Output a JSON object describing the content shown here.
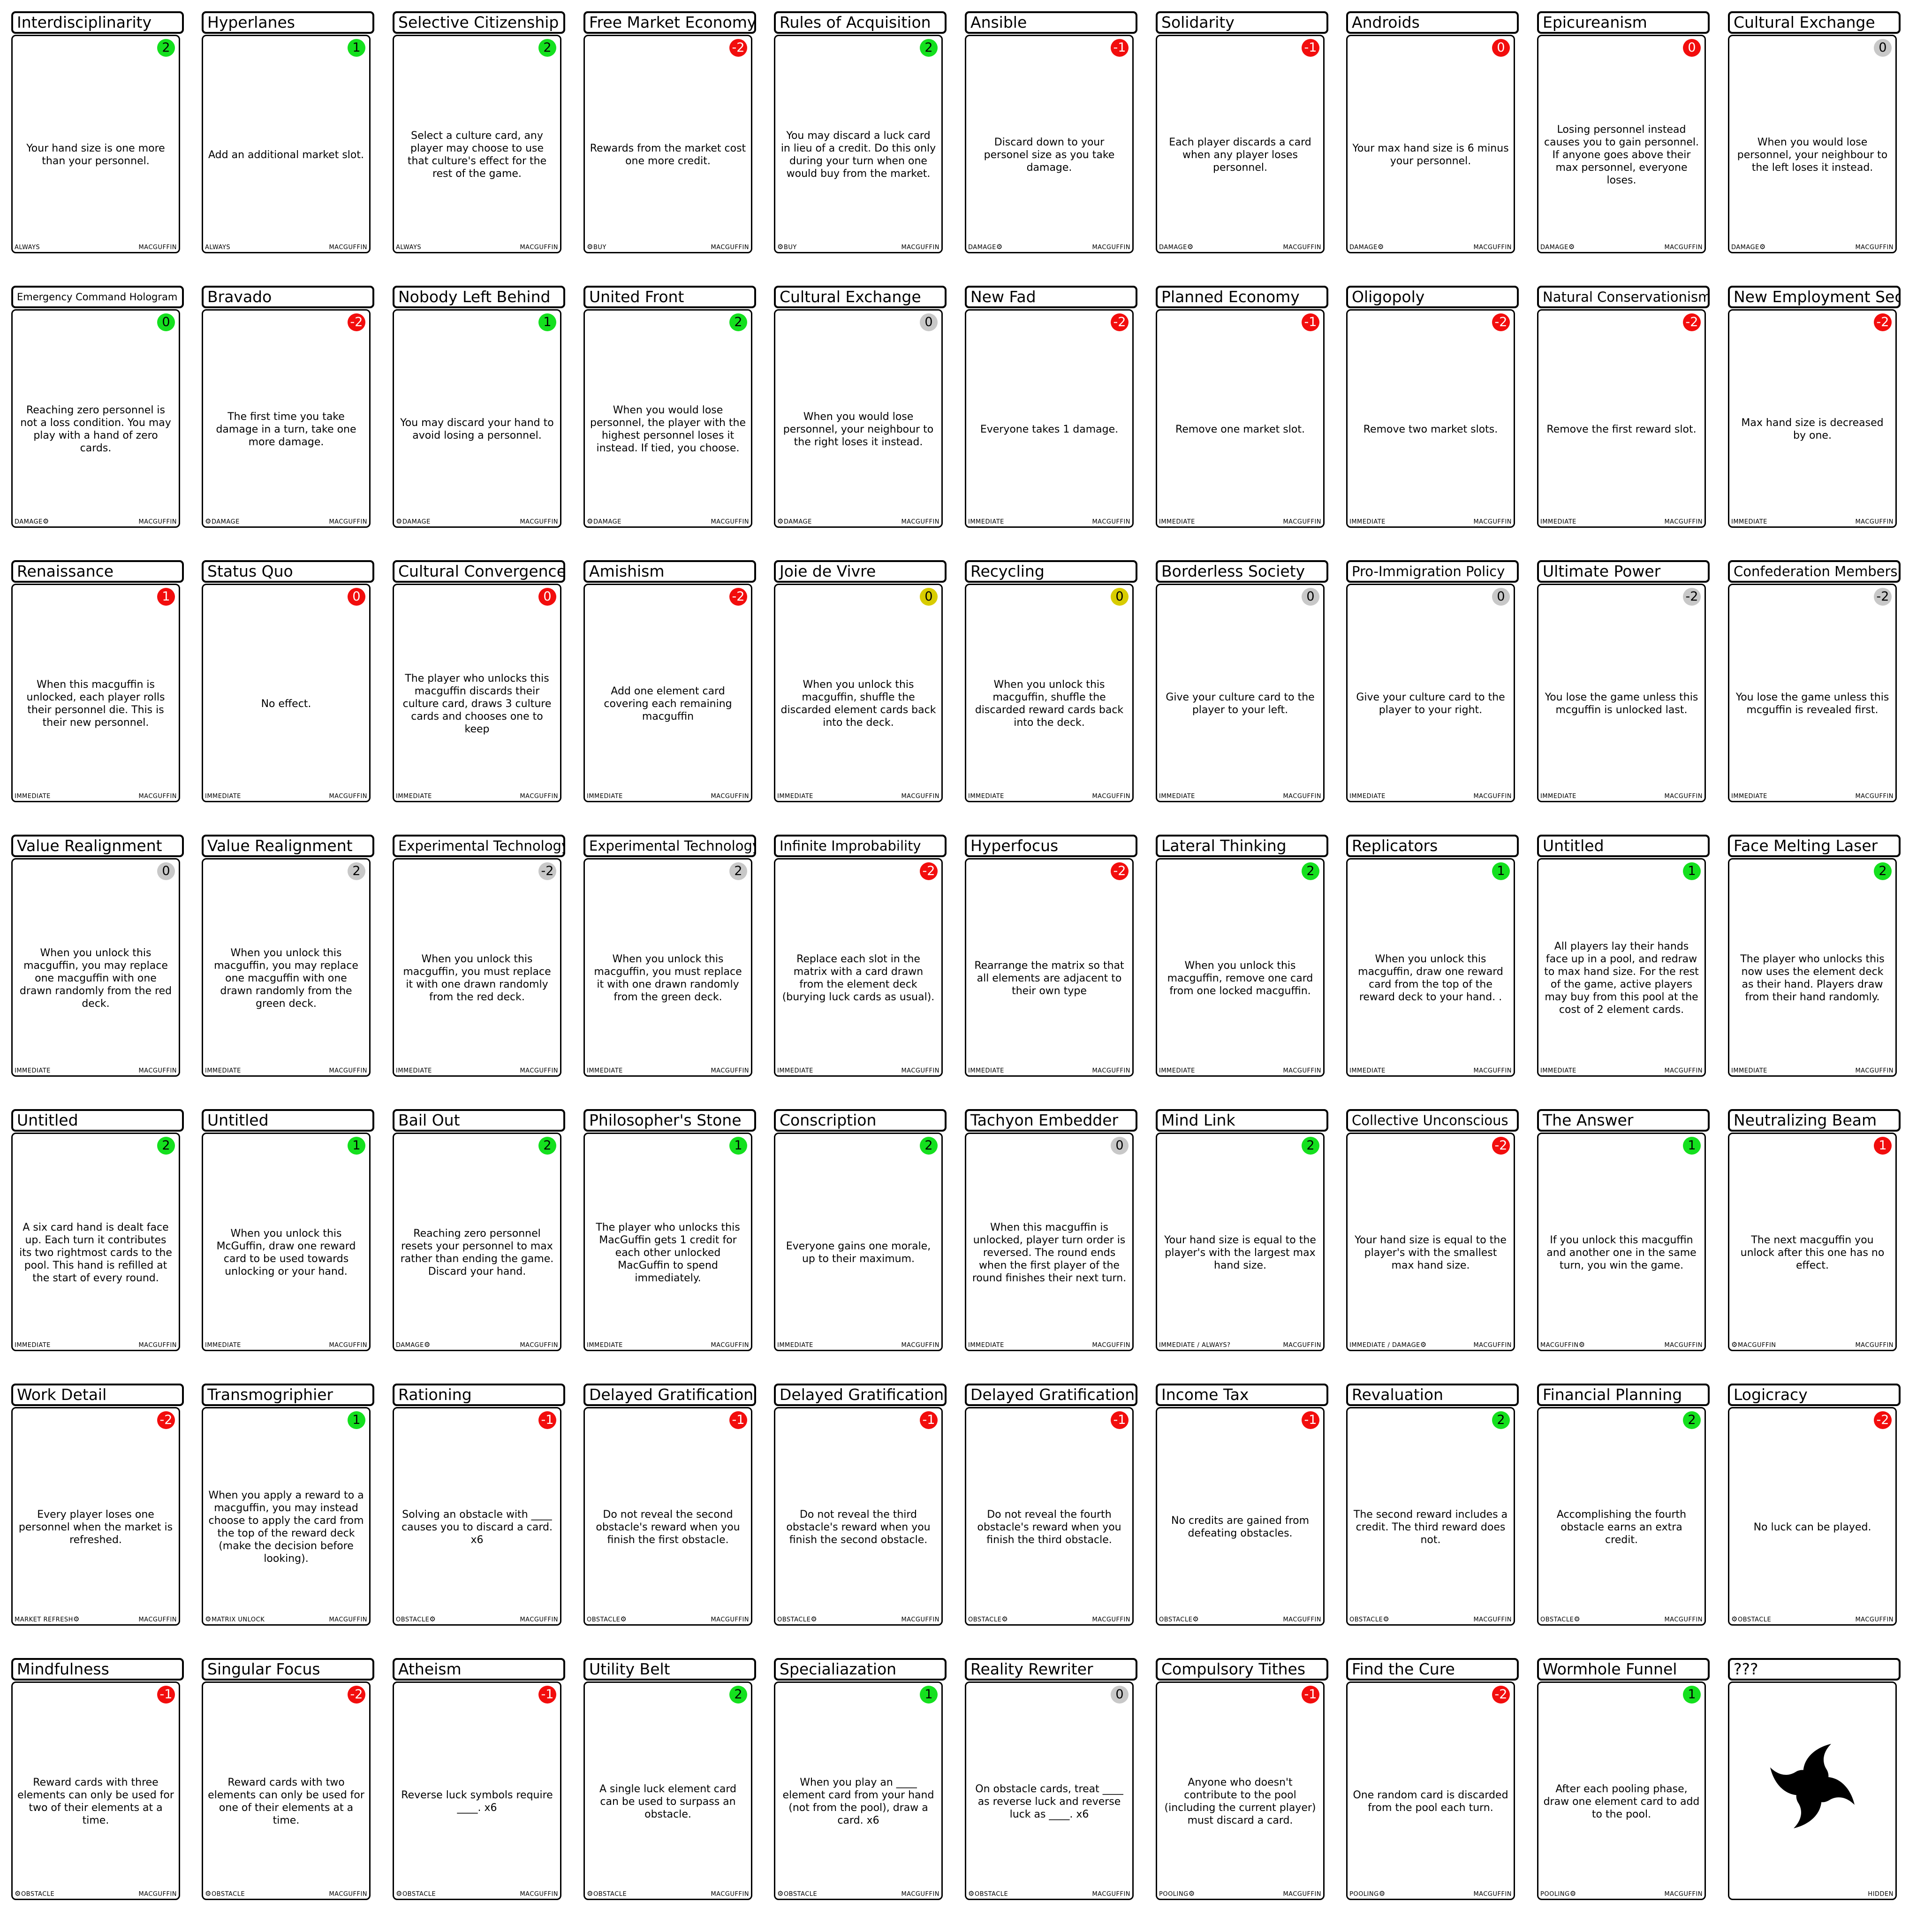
{
  "colors": {
    "green": "#14e01e",
    "red": "#f20d0d",
    "grey": "#c8c8c8",
    "yellow": "#d8cc00"
  },
  "rows": [
    [
      {
        "title": "Interdisciplinarity",
        "value": "2",
        "badge": "green",
        "text": "Your hand size is one more than your personnel.",
        "tag": "ALWAYS",
        "gear": "none",
        "type": "MACGUFFIN"
      },
      {
        "title": "Hyperlanes",
        "value": "1",
        "badge": "green",
        "text": "Add an additional market slot.",
        "tag": "ALWAYS",
        "gear": "none",
        "type": "MACGUFFIN"
      },
      {
        "title": "Selective Citizenship",
        "value": "2",
        "badge": "green",
        "text": "Select a culture card, any player may choose to use that culture's effect for the rest of the game.",
        "tag": "ALWAYS",
        "gear": "none",
        "type": "MACGUFFIN"
      },
      {
        "title": "Free Market Economy",
        "value": "-2",
        "badge": "red",
        "text": "Rewards from the market cost one more credit.",
        "tag": "BUY",
        "gear": "before",
        "type": "MACGUFFIN"
      },
      {
        "title": "Rules of Acquisition",
        "value": "2",
        "badge": "green",
        "text": "You may discard a luck card in lieu of a credit. Do this only during your turn when one would buy from the market.",
        "tag": "BUY",
        "gear": "before",
        "type": "MACGUFFIN"
      },
      {
        "title": "Ansible",
        "value": "-1",
        "badge": "red",
        "text": "Discard down to your personel size as you take damage.",
        "tag": "DAMAGE",
        "gear": "after",
        "type": "MACGUFFIN"
      },
      {
        "title": "Solidarity",
        "value": "-1",
        "badge": "red",
        "text": "Each player discards a card when any player loses personnel.",
        "tag": "DAMAGE",
        "gear": "after",
        "type": "MACGUFFIN"
      },
      {
        "title": "Androids",
        "value": "0",
        "badge": "red",
        "text": "Your max hand size is 6 minus your personnel.",
        "tag": "DAMAGE",
        "gear": "after",
        "type": "MACGUFFIN"
      },
      {
        "title": "Epicureanism",
        "value": "0",
        "badge": "red",
        "text": "Losing personnel instead causes you to gain personnel. If anyone goes above their max personnel, everyone loses.",
        "tag": "DAMAGE",
        "gear": "after",
        "type": "MACGUFFIN"
      },
      {
        "title": "Cultural Exchange",
        "value": "0",
        "badge": "grey",
        "text": "When you would lose personnel, your neighbour to the left loses it instead.",
        "tag": "DAMAGE",
        "gear": "after",
        "type": "MACGUFFIN"
      }
    ],
    [
      {
        "title": "Emergency Command Hologram",
        "value": "0",
        "badge": "green",
        "text": "Reaching zero personnel is not a loss condition. You may play with a hand of zero cards.",
        "tag": "DAMAGE",
        "gear": "after",
        "type": "MACGUFFIN"
      },
      {
        "title": "Bravado",
        "value": "-2",
        "badge": "red",
        "text": "The first time you take damage in a turn, take one more damage.",
        "tag": "DAMAGE",
        "gear": "before",
        "type": "MACGUFFIN"
      },
      {
        "title": "Nobody Left Behind",
        "value": "1",
        "badge": "green",
        "text": "You may discard your hand to avoid losing a personnel.",
        "tag": "DAMAGE",
        "gear": "before",
        "type": "MACGUFFIN"
      },
      {
        "title": "United Front",
        "value": "2",
        "badge": "green",
        "text": "When you would lose personnel, the player with the highest personnel loses it instead. If tied, you choose.",
        "tag": "DAMAGE",
        "gear": "before",
        "type": "MACGUFFIN"
      },
      {
        "title": "Cultural Exchange",
        "value": "0",
        "badge": "grey",
        "text": "When you would lose personnel, your neighbour to the right loses it instead.",
        "tag": "DAMAGE",
        "gear": "before",
        "type": "MACGUFFIN"
      },
      {
        "title": "New Fad",
        "value": "-2",
        "badge": "red",
        "text": "Everyone takes 1 damage.",
        "tag": "IMMEDIATE",
        "gear": "none",
        "type": "MACGUFFIN"
      },
      {
        "title": "Planned Economy",
        "value": "-1",
        "badge": "red",
        "text": "Remove one market slot.",
        "tag": "IMMEDIATE",
        "gear": "none",
        "type": "MACGUFFIN"
      },
      {
        "title": "Oligopoly",
        "value": "-2",
        "badge": "red",
        "text": "Remove two market slots.",
        "tag": "IMMEDIATE",
        "gear": "none",
        "type": "MACGUFFIN"
      },
      {
        "title": "Natural Conservationism",
        "value": "-2",
        "badge": "red",
        "text": "Remove the first reward slot.",
        "tag": "IMMEDIATE",
        "gear": "none",
        "type": "MACGUFFIN"
      },
      {
        "title": "New Employment Sector",
        "value": "-2",
        "badge": "red",
        "text": "Max hand size is decreased by one.",
        "tag": "IMMEDIATE",
        "gear": "none",
        "type": "MACGUFFIN"
      }
    ],
    [
      {
        "title": "Renaissance",
        "value": "1",
        "badge": "red",
        "text": "When this macguffin is unlocked, each player rolls their personnel die. This is their new personnel.",
        "tag": "IMMEDIATE",
        "gear": "none",
        "type": "MACGUFFIN"
      },
      {
        "title": "Status Quo",
        "value": "0",
        "badge": "red",
        "text": "No effect.",
        "tag": "IMMEDIATE",
        "gear": "none",
        "type": "MACGUFFIN"
      },
      {
        "title": "Cultural Convergence",
        "value": "0",
        "badge": "red",
        "text": "The player who unlocks this macguffin discards their culture card, draws 3 culture cards and chooses one to keep",
        "tag": "IMMEDIATE",
        "gear": "none",
        "type": "MACGUFFIN"
      },
      {
        "title": "Amishism",
        "value": "-2",
        "badge": "red",
        "text": "Add one element card covering each remaining macguffin",
        "tag": "IMMEDIATE",
        "gear": "none",
        "type": "MACGUFFIN"
      },
      {
        "title": "Joie de Vivre",
        "value": "0",
        "badge": "yellow",
        "text": "When you unlock this macguffin, shuffle the discarded element cards back into the deck.",
        "tag": "IMMEDIATE",
        "gear": "none",
        "type": "MACGUFFIN"
      },
      {
        "title": "Recycling",
        "value": "0",
        "badge": "yellow",
        "text": "When you unlock this macguffin, shuffle the discarded reward cards back into the deck.",
        "tag": "IMMEDIATE",
        "gear": "none",
        "type": "MACGUFFIN"
      },
      {
        "title": "Borderless Society",
        "value": "0",
        "badge": "grey",
        "text": "Give your culture card to the player to your left.",
        "tag": "IMMEDIATE",
        "gear": "none",
        "type": "MACGUFFIN"
      },
      {
        "title": "Pro-Immigration Policy",
        "value": "0",
        "badge": "grey",
        "text": "Give your culture card to the player to your right.",
        "tag": "IMMEDIATE",
        "gear": "none",
        "type": "MACGUFFIN"
      },
      {
        "title": "Ultimate Power",
        "value": "-2",
        "badge": "grey",
        "text": "You lose the game unless this mcguffin is unlocked last.",
        "tag": "IMMEDIATE",
        "gear": "none",
        "type": "MACGUFFIN"
      },
      {
        "title": "Confederation Membership",
        "value": "-2",
        "badge": "grey",
        "text": "You lose the game unless this mcguffin is revealed first.",
        "tag": "IMMEDIATE",
        "gear": "none",
        "type": "MACGUFFIN"
      }
    ],
    [
      {
        "title": "Value Realignment",
        "value": "0",
        "badge": "grey",
        "text": "When you unlock this macguffin, you may replace one macguffin with one drawn randomly from the red deck.",
        "tag": "IMMEDIATE",
        "gear": "none",
        "type": "MACGUFFIN"
      },
      {
        "title": "Value Realignment",
        "value": "2",
        "badge": "grey",
        "text": "When you unlock this macguffin, you may replace one macguffin with one drawn randomly from the green deck.",
        "tag": "IMMEDIATE",
        "gear": "none",
        "type": "MACGUFFIN"
      },
      {
        "title": "Experimental Technology",
        "value": "-2",
        "badge": "grey",
        "text": "When you unlock this macguffin, you must replace it with one drawn randomly from the red deck.",
        "tag": "IMMEDIATE",
        "gear": "none",
        "type": "MACGUFFIN"
      },
      {
        "title": "Experimental Technology",
        "value": "2",
        "badge": "grey",
        "text": "When you unlock this macguffin, you must replace it with one drawn randomly from the green deck.",
        "tag": "IMMEDIATE",
        "gear": "none",
        "type": "MACGUFFIN"
      },
      {
        "title": "Infinite Improbability",
        "value": "-2",
        "badge": "red",
        "text": "Replace each slot in the matrix with a card drawn from the element deck (burying luck cards as usual).",
        "tag": "IMMEDIATE",
        "gear": "none",
        "type": "MACGUFFIN"
      },
      {
        "title": "Hyperfocus",
        "value": "-2",
        "badge": "red",
        "text": "Rearrange the matrix so that all elements are adjacent to their own type",
        "tag": "IMMEDIATE",
        "gear": "none",
        "type": "MACGUFFIN"
      },
      {
        "title": "Lateral Thinking",
        "value": "2",
        "badge": "green",
        "text": "When you unlock this macguffin, remove one card from one locked macguffin.",
        "tag": "IMMEDIATE",
        "gear": "none",
        "type": "MACGUFFIN"
      },
      {
        "title": "Replicators",
        "value": "1",
        "badge": "green",
        "text": "When you unlock this macguffin, draw one reward card from the top of the reward deck to your hand. .",
        "tag": "IMMEDIATE",
        "gear": "none",
        "type": "MACGUFFIN"
      },
      {
        "title": "Untitled",
        "value": "1",
        "badge": "green",
        "text": "All players lay their hands face up in a pool, and redraw to max hand size. For the rest of the game, active players may buy from this pool at the cost of 2 element cards.",
        "tag": "IMMEDIATE",
        "gear": "none",
        "type": "MACGUFFIN"
      },
      {
        "title": "Face Melting Laser",
        "value": "2",
        "badge": "green",
        "text": "The player who unlocks this now uses the element deck as their hand. Players draw from their hand randomly.",
        "tag": "IMMEDIATE",
        "gear": "none",
        "type": "MACGUFFIN"
      }
    ],
    [
      {
        "title": "Untitled",
        "value": "2",
        "badge": "green",
        "text": "A six card hand is dealt face up. Each turn it contributes its two rightmost cards to the pool. This hand is refilled at the start of every round.",
        "tag": "IMMEDIATE",
        "gear": "none",
        "type": "MACGUFFIN"
      },
      {
        "title": "Untitled",
        "value": "1",
        "badge": "green",
        "text": "When you unlock this McGuffin, draw one reward card to be used towards unlocking or your hand.",
        "tag": "IMMEDIATE",
        "gear": "none",
        "type": "MACGUFFIN"
      },
      {
        "title": "Bail Out",
        "value": "2",
        "badge": "green",
        "text": "Reaching zero personnel resets your personnel to max rather than ending the game. Discard your hand.",
        "tag": "DAMAGE",
        "gear": "after",
        "type": "MACGUFFIN"
      },
      {
        "title": "Philosopher's Stone",
        "value": "1",
        "badge": "green",
        "text": "The player who unlocks this MacGuffin gets 1 credit for each other unlocked MacGuffin to spend immediately.",
        "tag": "IMMEDIATE",
        "gear": "none",
        "type": "MACGUFFIN"
      },
      {
        "title": "Conscription",
        "value": "2",
        "badge": "green",
        "text": "Everyone gains one morale, up to their maximum.",
        "tag": "IMMEDIATE",
        "gear": "none",
        "type": "MACGUFFIN"
      },
      {
        "title": "Tachyon Embedder",
        "value": "0",
        "badge": "grey",
        "text": "When this macguffin is unlocked, player turn order is reversed. The round ends when the first player of the round finishes their next turn.",
        "tag": "IMMEDIATE",
        "gear": "none",
        "type": "MACGUFFIN"
      },
      {
        "title": "Mind Link",
        "value": "2",
        "badge": "green",
        "text": "Your hand size is equal to the player's with the largest max hand size.",
        "tag": "IMMEDIATE / ALWAYS?",
        "gear": "none",
        "type": "MACGUFFIN"
      },
      {
        "title": "Collective Unconscious",
        "value": "-2",
        "badge": "red",
        "text": "Your hand size is equal to the player's with the smallest max hand size.",
        "tag": "IMMEDIATE / DAMAGE",
        "gear": "after",
        "type": "MACGUFFIN"
      },
      {
        "title": "The Answer",
        "value": "1",
        "badge": "green",
        "text": "If you unlock this macguffin and another one in the same turn, you win the game.",
        "tag": "MACGUFFIN",
        "gear": "after",
        "type": "MACGUFFIN"
      },
      {
        "title": "Neutralizing Beam",
        "value": "1",
        "badge": "red",
        "text": "The next macguffin you unlock after this one has no effect.",
        "tag": "MACGUFFIN",
        "gear": "before",
        "type": "MACGUFFIN"
      }
    ],
    [
      {
        "title": "Work Detail",
        "value": "-2",
        "badge": "red",
        "text": "Every player loses one personnel when the market is refreshed.",
        "tag": "MARKET REFRESH",
        "gear": "after",
        "type": "MACGUFFIN"
      },
      {
        "title": "Transmogriphier",
        "value": "1",
        "badge": "green",
        "text": "When you apply a reward to a macguffin, you may instead choose to apply the card from the top of the reward deck (make the decision before looking).",
        "tag": "MATRIX UNLOCK",
        "gear": "before",
        "type": "MACGUFFIN"
      },
      {
        "title": "Rationing",
        "value": "-1",
        "badge": "red",
        "text": "Solving an obstacle with ____ causes you to discard a card. x6",
        "tag": "OBSTACLE",
        "gear": "after",
        "type": "MACGUFFIN"
      },
      {
        "title": "Delayed Gratification",
        "value": "-1",
        "badge": "red",
        "text": "Do not reveal the second obstacle's reward when you finish the first obstacle.",
        "tag": "OBSTACLE",
        "gear": "after",
        "type": "MACGUFFIN"
      },
      {
        "title": "Delayed Gratification",
        "value": "-1",
        "badge": "red",
        "text": "Do not reveal the third obstacle's reward when you finish the second obstacle.",
        "tag": "OBSTACLE",
        "gear": "after",
        "type": "MACGUFFIN"
      },
      {
        "title": "Delayed Gratification",
        "value": "-1",
        "badge": "red",
        "text": "Do not reveal the fourth obstacle's reward when you finish the third obstacle.",
        "tag": "OBSTACLE",
        "gear": "after",
        "type": "MACGUFFIN"
      },
      {
        "title": "Income Tax",
        "value": "-1",
        "badge": "red",
        "text": "No credits are gained from defeating obstacles.",
        "tag": "OBSTACLE",
        "gear": "after",
        "type": "MACGUFFIN"
      },
      {
        "title": "Revaluation",
        "value": "2",
        "badge": "green",
        "text": "The second reward includes a credit. The third reward does not.",
        "tag": "OBSTACLE",
        "gear": "after",
        "type": "MACGUFFIN"
      },
      {
        "title": "Financial Planning",
        "value": "2",
        "badge": "green",
        "text": "Accomplishing the fourth obstacle earns an extra credit.",
        "tag": "OBSTACLE",
        "gear": "after",
        "type": "MACGUFFIN"
      },
      {
        "title": "Logicracy",
        "value": "-2",
        "badge": "red",
        "text": "No luck can be played.",
        "tag": "OBSTACLE",
        "gear": "before",
        "type": "MACGUFFIN"
      }
    ],
    [
      {
        "title": "Mindfulness",
        "value": "-1",
        "badge": "red",
        "text": "Reward cards with three elements can only be used for two of their elements at a time.",
        "tag": "OBSTACLE",
        "gear": "before",
        "type": "MACGUFFIN"
      },
      {
        "title": "Singular Focus",
        "value": "-2",
        "badge": "red",
        "text": "Reward cards with two elements can only be used for one of their elements at a time.",
        "tag": "OBSTACLE",
        "gear": "before",
        "type": "MACGUFFIN"
      },
      {
        "title": "Atheism",
        "value": "-1",
        "badge": "red",
        "text": "Reverse luck symbols require ____. x6",
        "tag": "OBSTACLE",
        "gear": "before",
        "type": "MACGUFFIN"
      },
      {
        "title": "Utility Belt",
        "value": "2",
        "badge": "green",
        "text": "A single luck element card can be used to surpass an obstacle.",
        "tag": "OBSTACLE",
        "gear": "before",
        "type": "MACGUFFIN"
      },
      {
        "title": "Specialiazation",
        "value": "1",
        "badge": "green",
        "text": "When you play an ____ element card from your hand (not from the pool), draw a card. x6",
        "tag": "OBSTACLE",
        "gear": "before",
        "type": "MACGUFFIN"
      },
      {
        "title": "Reality Rewriter",
        "value": "0",
        "badge": "grey",
        "text": "On obstacle cards, treat ____ as reverse luck and reverse luck as ____. x6",
        "tag": "OBSTACLE",
        "gear": "before",
        "type": "MACGUFFIN"
      },
      {
        "title": "Compulsory Tithes",
        "value": "-1",
        "badge": "red",
        "text": "Anyone who doesn't contribute to the pool (including the current player) must discard a card.",
        "tag": "POOLING",
        "gear": "after",
        "type": "MACGUFFIN"
      },
      {
        "title": "Find the Cure",
        "value": "-2",
        "badge": "red",
        "text": "One random card is discarded from the pool each turn.",
        "tag": "POOLING",
        "gear": "after",
        "type": "MACGUFFIN"
      },
      {
        "title": "Wormhole Funnel",
        "value": "1",
        "badge": "green",
        "text": "After each pooling phase, draw one element card to add to the pool.",
        "tag": "POOLING",
        "gear": "after",
        "type": "MACGUFFIN"
      },
      {
        "title": "???",
        "value": "",
        "badge": "none",
        "text": "",
        "tag": "",
        "gear": "none",
        "type": "HIDDEN",
        "emblem": "triskelion-emblem"
      }
    ]
  ]
}
